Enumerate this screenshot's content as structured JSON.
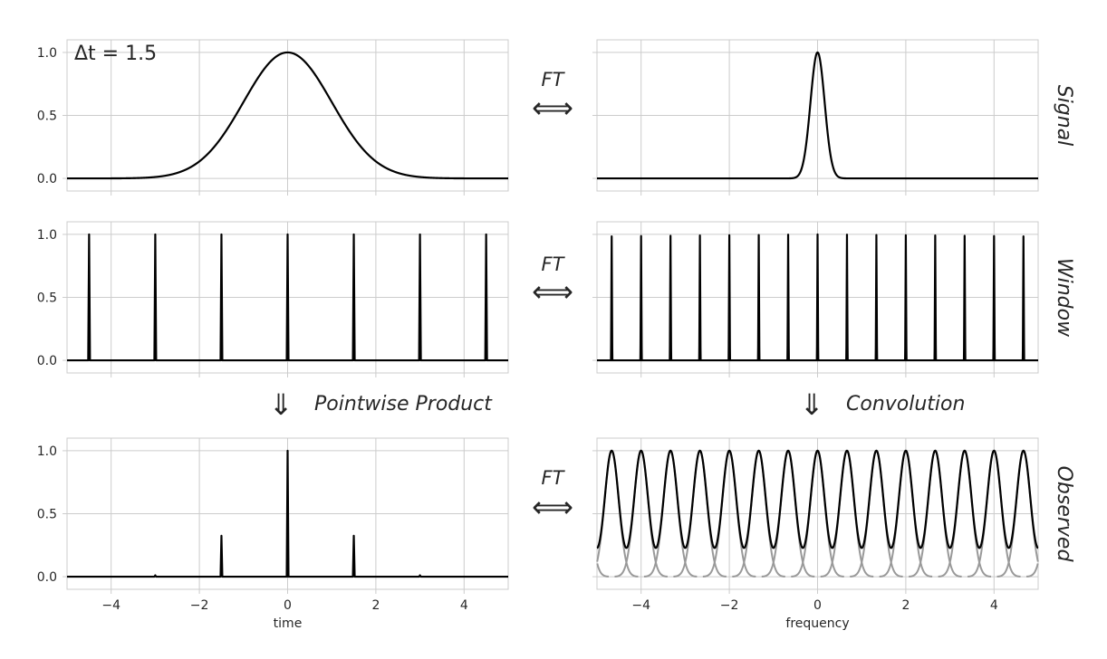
{
  "annotation_dt": "Δt = 1.5",
  "ft_label": "FT",
  "ft_arrow": "⟺",
  "down_arrow": "⇓",
  "op_pointwise": "Pointwise Product",
  "op_convolution": "Convolution",
  "colors": {
    "line": "#000000",
    "component": "#999999",
    "grid": "#cccccc",
    "text": "#262626"
  },
  "chart_data": [
    {
      "id": "signal-time",
      "type": "line",
      "row": 0,
      "col": 0,
      "function": "gaussian",
      "params": {
        "sigma": 1.0,
        "amplitude": 1.0
      },
      "xlim": [
        -5,
        5
      ],
      "ylim": [
        -0.1,
        1.1
      ],
      "xticks": [
        -4,
        -2,
        0,
        2,
        4
      ],
      "yticks": [
        0.0,
        0.5,
        1.0
      ],
      "ytick_labels": [
        "0.0",
        "0.5",
        "1.0"
      ],
      "show_xticklabels": false,
      "xlabel": "",
      "side_label": ""
    },
    {
      "id": "signal-freq",
      "type": "line",
      "row": 0,
      "col": 1,
      "function": "gaussian",
      "params": {
        "sigma": 0.16,
        "amplitude": 1.0
      },
      "xlim": [
        -5,
        5
      ],
      "ylim": [
        -0.1,
        1.1
      ],
      "xticks": [
        -4,
        -2,
        0,
        2,
        4
      ],
      "yticks": [
        0.0,
        0.5,
        1.0
      ],
      "show_xticklabels": false,
      "show_yticklabels": false,
      "xlabel": "",
      "side_label": "Signal"
    },
    {
      "id": "window-time",
      "type": "line",
      "row": 1,
      "col": 0,
      "function": "comb",
      "params": {
        "spacing": 1.5,
        "width": 0.02,
        "range": [
          -4.5,
          4.5
        ]
      },
      "xlim": [
        -5,
        5
      ],
      "ylim": [
        -0.1,
        1.1
      ],
      "xticks": [
        -4,
        -2,
        0,
        2,
        4
      ],
      "yticks": [
        0.0,
        0.5,
        1.0
      ],
      "ytick_labels": [
        "0.0",
        "0.5",
        "1.0"
      ],
      "show_xticklabels": false,
      "xlabel": "",
      "side_label": ""
    },
    {
      "id": "window-freq",
      "type": "line",
      "row": 1,
      "col": 1,
      "function": "comb",
      "params": {
        "spacing": 0.6667,
        "width": 0.015,
        "range": [
          -4.67,
          4.67
        ]
      },
      "xlim": [
        -5,
        5
      ],
      "ylim": [
        -0.1,
        1.1
      ],
      "xticks": [
        -4,
        -2,
        0,
        2,
        4
      ],
      "yticks": [
        0.0,
        0.5,
        1.0
      ],
      "show_xticklabels": false,
      "show_yticklabels": false,
      "xlabel": "",
      "side_label": "Window"
    },
    {
      "id": "observed-time",
      "type": "line",
      "row": 2,
      "col": 0,
      "function": "sampled",
      "params": {
        "spacing": 1.5,
        "width": 0.02,
        "sigma": 1.0
      },
      "xlim": [
        -5,
        5
      ],
      "ylim": [
        -0.1,
        1.1
      ],
      "xticks": [
        -4,
        -2,
        0,
        2,
        4
      ],
      "xtick_labels": [
        "−4",
        "−2",
        "0",
        "2",
        "4"
      ],
      "yticks": [
        0.0,
        0.5,
        1.0
      ],
      "ytick_labels": [
        "0.0",
        "0.5",
        "1.0"
      ],
      "show_xticklabels": true,
      "xlabel": "time",
      "side_label": ""
    },
    {
      "id": "observed-freq",
      "type": "line",
      "row": 2,
      "col": 1,
      "function": "periodized",
      "params": {
        "spacing": 0.6667,
        "sigma": 0.16
      },
      "xlim": [
        -5,
        5
      ],
      "ylim": [
        -0.1,
        1.1
      ],
      "xticks": [
        -4,
        -2,
        0,
        2,
        4
      ],
      "xtick_labels": [
        "−4",
        "−2",
        "0",
        "2",
        "4"
      ],
      "yticks": [
        0.0,
        0.5,
        1.0
      ],
      "show_xticklabels": true,
      "show_yticklabels": false,
      "xlabel": "frequency",
      "side_label": "Observed"
    }
  ]
}
